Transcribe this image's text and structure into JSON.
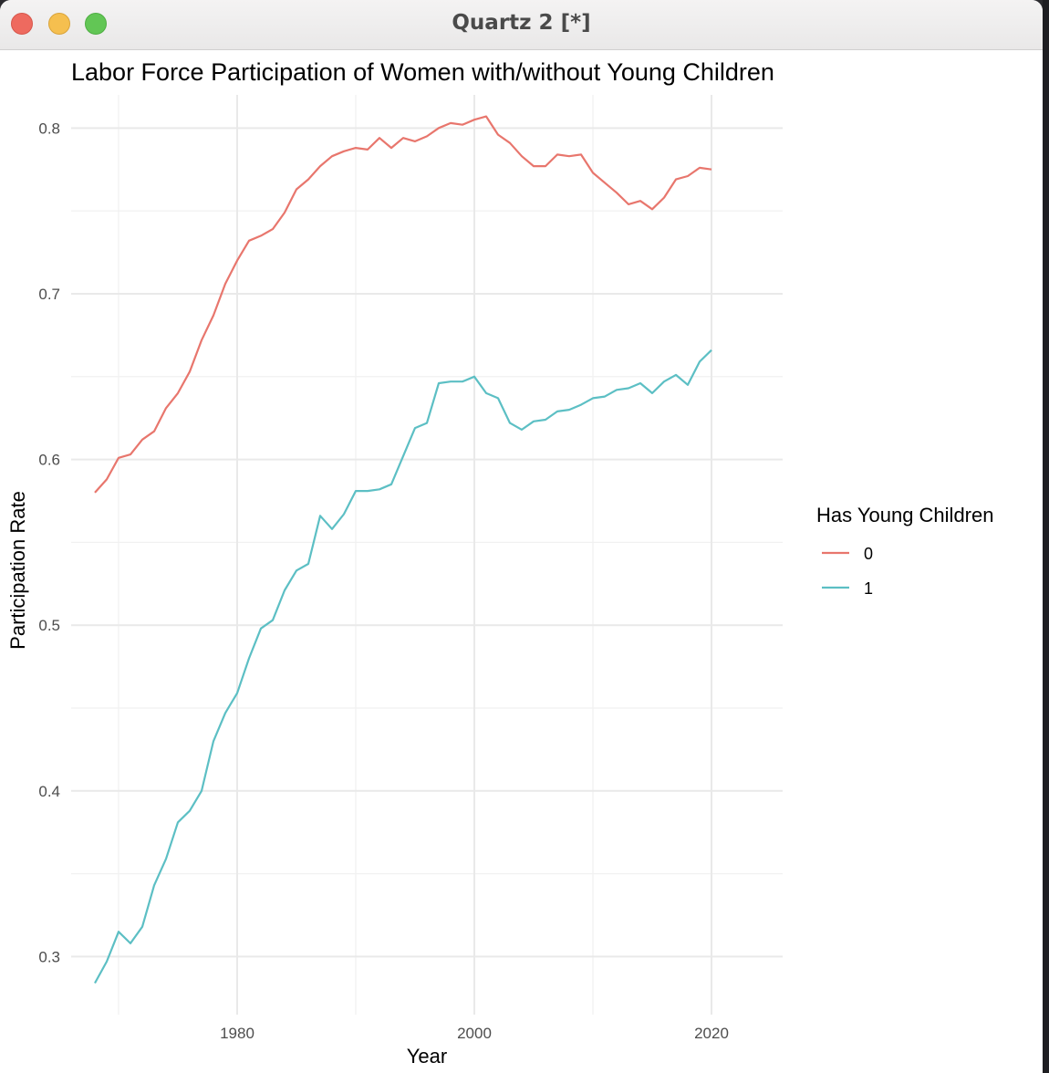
{
  "window": {
    "title": "Quartz 2 [*]",
    "controls": [
      "close-button",
      "minimize-button",
      "zoom-button"
    ],
    "control_colors": {
      "close": "#ee6a5f",
      "minimize": "#f5bf4f",
      "zoom": "#62c655"
    }
  },
  "chart_data": {
    "type": "line",
    "title": "Labor Force Participation of Women with/without Young Children",
    "xlabel": "Year",
    "ylabel": "Participation Rate",
    "xlim": [
      1966,
      2026
    ],
    "ylim": [
      0.265,
      0.82
    ],
    "x_ticks": [
      1980,
      2000,
      2020
    ],
    "x_tick_labels": [
      "1980",
      "2000",
      "2020"
    ],
    "y_ticks": [
      0.3,
      0.4,
      0.5,
      0.6,
      0.7,
      0.8
    ],
    "y_tick_labels": [
      "0.3",
      "0.4",
      "0.5",
      "0.6",
      "0.7",
      "0.8"
    ],
    "grid": true,
    "legend": {
      "title": "Has Young Children",
      "position": "right"
    },
    "x": [
      1968,
      1969,
      1970,
      1971,
      1972,
      1973,
      1974,
      1975,
      1976,
      1977,
      1978,
      1979,
      1980,
      1981,
      1982,
      1983,
      1984,
      1985,
      1986,
      1987,
      1988,
      1989,
      1990,
      1991,
      1992,
      1993,
      1994,
      1995,
      1996,
      1997,
      1998,
      1999,
      2000,
      2001,
      2002,
      2003,
      2004,
      2005,
      2006,
      2007,
      2008,
      2009,
      2010,
      2011,
      2012,
      2013,
      2014,
      2015,
      2016,
      2017,
      2018,
      2019,
      2020
    ],
    "series": [
      {
        "name": "0",
        "color": "#e8766d",
        "values": [
          0.58,
          0.588,
          0.601,
          0.603,
          0.612,
          0.617,
          0.631,
          0.64,
          0.653,
          0.672,
          0.687,
          0.706,
          0.72,
          0.732,
          0.735,
          0.739,
          0.749,
          0.763,
          0.769,
          0.777,
          0.783,
          0.786,
          0.788,
          0.787,
          0.794,
          0.788,
          0.794,
          0.792,
          0.795,
          0.8,
          0.803,
          0.802,
          0.805,
          0.807,
          0.796,
          0.791,
          0.783,
          0.777,
          0.777,
          0.784,
          0.783,
          0.784,
          0.773,
          0.767,
          0.761,
          0.754,
          0.756,
          0.751,
          0.758,
          0.769,
          0.771,
          0.776,
          0.775
        ]
      },
      {
        "name": "1",
        "color": "#5cbfc4",
        "values": [
          0.284,
          0.297,
          0.315,
          0.308,
          0.318,
          0.343,
          0.359,
          0.381,
          0.388,
          0.4,
          0.43,
          0.447,
          0.459,
          0.48,
          0.498,
          0.503,
          0.521,
          0.533,
          0.537,
          0.566,
          0.558,
          0.567,
          0.581,
          0.581,
          0.582,
          0.585,
          0.602,
          0.619,
          0.622,
          0.646,
          0.647,
          0.647,
          0.65,
          0.64,
          0.637,
          0.622,
          0.618,
          0.623,
          0.624,
          0.629,
          0.63,
          0.633,
          0.637,
          0.638,
          0.642,
          0.643,
          0.646,
          0.64,
          0.647,
          0.651,
          0.645,
          0.659,
          0.666
        ]
      }
    ]
  }
}
